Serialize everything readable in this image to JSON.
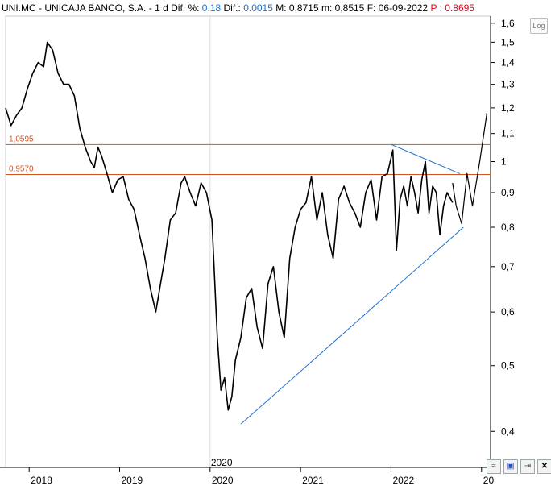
{
  "header": {
    "symbol": "UNI.MC",
    "name": "UNICAJA BANCO, S.A.",
    "interval": "1 d",
    "dif_pct_label": "Dif. %:",
    "dif_pct_value": "0.18",
    "dif_label": "Dif.:",
    "dif_value": "0.0015",
    "max_label": "M:",
    "max_value": "0,8715",
    "min_label": "m:",
    "min_value": "0,8515",
    "date_label": "F:",
    "date_value": "06-09-2022",
    "price_label": "P :",
    "price_value": "0.8695"
  },
  "controls": {
    "log_button": "Log",
    "save_icon": "floppy-disk-icon",
    "export_icon": "export-icon",
    "close_icon": "close-icon",
    "waves_icon": "waves-icon"
  },
  "colors": {
    "price_line": "#000000",
    "horizontal_levels": "#d9541d",
    "trend_lines": "#1f6fd1",
    "header_values": "#1e6fc9",
    "header_price": "#e0001a"
  },
  "chart_data": {
    "type": "line",
    "title": "",
    "xlabel": "",
    "ylabel": "",
    "y_scale": "log",
    "ylim": [
      0.38,
      1.63
    ],
    "y_ticks": [
      "0,4",
      "0,5",
      "0,6",
      "0,7",
      "0,8",
      "0,9",
      "1",
      "1,1",
      "1,2",
      "1,3",
      "1,4",
      "1,5",
      "1,6"
    ],
    "y_tick_values": [
      0.4,
      0.5,
      0.6,
      0.7,
      0.8,
      0.9,
      1.0,
      1.1,
      1.2,
      1.3,
      1.4,
      1.5,
      1.6
    ],
    "x_ticks": [
      "2018",
      "2019",
      "2020",
      "2021",
      "2022",
      "20"
    ],
    "x_tick_values": [
      2018.0,
      2019.0,
      2020.0,
      2021.0,
      2022.0,
      2023.0
    ],
    "xlim": [
      2017.74,
      2023.1
    ],
    "vertical_marker": {
      "x": 2020.0,
      "label": "2020"
    },
    "series": [
      {
        "x": [
          2017.74,
          2017.8,
          2017.86,
          2017.92,
          2017.98,
          2018.04,
          2018.1,
          2018.16,
          2018.2,
          2018.26,
          2018.32,
          2018.38,
          2018.44,
          2018.5,
          2018.56,
          2018.62,
          2018.68,
          2018.72,
          2018.76,
          2018.8,
          2018.86,
          2018.92,
          2018.98,
          2019.04,
          2019.1,
          2019.16,
          2019.22,
          2019.28,
          2019.34,
          2019.4,
          2019.46,
          2019.5,
          2019.56,
          2019.62,
          2019.68,
          2019.72,
          2019.78,
          2019.84,
          2019.9,
          2019.96,
          2020.02,
          2020.08,
          2020.12,
          2020.16,
          2020.2,
          2020.24,
          2020.28,
          2020.34,
          2020.4,
          2020.46,
          2020.52,
          2020.58,
          2020.64,
          2020.7,
          2020.76,
          2020.82,
          2020.88,
          2020.94,
          2021.0,
          2021.06,
          2021.12,
          2021.18,
          2021.24,
          2021.3,
          2021.36,
          2021.42,
          2021.48,
          2021.54,
          2021.6,
          2021.66,
          2021.72,
          2021.78,
          2021.84,
          2021.9,
          2021.96,
          2022.02,
          2022.06,
          2022.1,
          2022.14,
          2022.18,
          2022.22,
          2022.26,
          2022.3,
          2022.34,
          2022.38,
          2022.42,
          2022.46,
          2022.5,
          2022.54,
          2022.58,
          2022.62,
          2022.66,
          2022.68
        ],
        "values": [
          1.2,
          1.13,
          1.17,
          1.2,
          1.28,
          1.35,
          1.4,
          1.38,
          1.5,
          1.46,
          1.35,
          1.3,
          1.3,
          1.25,
          1.12,
          1.05,
          1.0,
          0.98,
          1.05,
          1.02,
          0.96,
          0.9,
          0.94,
          0.95,
          0.88,
          0.85,
          0.78,
          0.72,
          0.65,
          0.6,
          0.67,
          0.72,
          0.82,
          0.84,
          0.93,
          0.95,
          0.9,
          0.86,
          0.93,
          0.9,
          0.82,
          0.55,
          0.46,
          0.48,
          0.43,
          0.45,
          0.51,
          0.55,
          0.63,
          0.65,
          0.57,
          0.53,
          0.66,
          0.7,
          0.6,
          0.55,
          0.72,
          0.8,
          0.85,
          0.87,
          0.95,
          0.82,
          0.9,
          0.78,
          0.72,
          0.88,
          0.92,
          0.87,
          0.84,
          0.8,
          0.9,
          0.94,
          0.82,
          0.95,
          0.96,
          1.04,
          0.74,
          0.88,
          0.92,
          0.86,
          0.95,
          0.9,
          0.84,
          0.94,
          1.0,
          0.84,
          0.92,
          0.9,
          0.78,
          0.86,
          0.9,
          0.88,
          0.87
        ]
      },
      {
        "name": "",
        "x": [
          2022.68,
          2022.72,
          2022.78,
          2022.84,
          2022.9,
          2022.98,
          2023.06
        ],
        "values": [
          0.93,
          0.86,
          0.81,
          0.96,
          0.86,
          1.0,
          1.18
        ]
      }
    ],
    "horizontal_levels": [
      {
        "value": 1.0595,
        "label": "1,0595"
      },
      {
        "value": 0.957,
        "label": "0,9570"
      }
    ],
    "trend_lines": [
      {
        "x": [
          2020.34,
          2022.8
        ],
        "values": [
          0.41,
          0.8
        ]
      },
      {
        "x": [
          2022.0,
          2022.76
        ],
        "values": [
          1.06,
          0.96
        ]
      }
    ]
  }
}
